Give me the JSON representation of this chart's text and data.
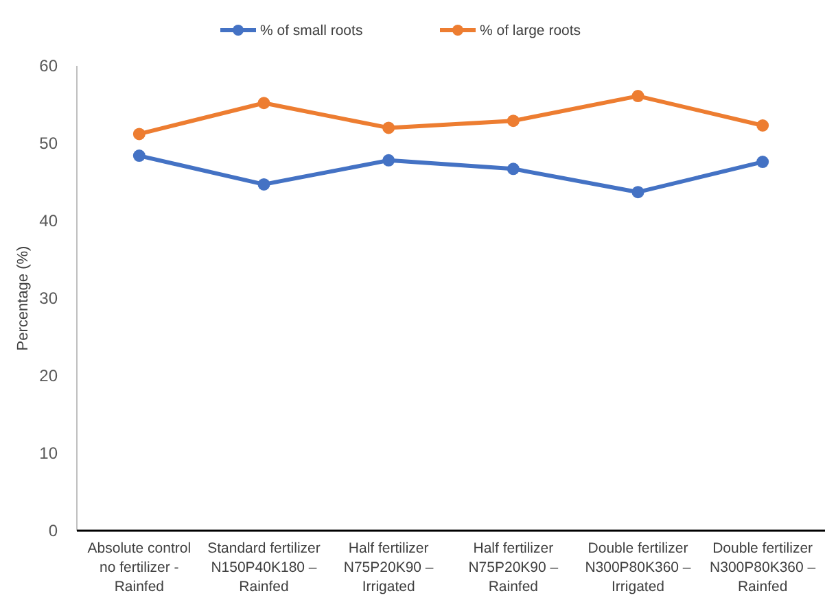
{
  "chart_data": {
    "type": "line",
    "ylabel": "Percentage (%)",
    "categories": [
      "Absolute control\nno fertilizer -\nRainfed",
      "Standard fertilizer\nN150P40K180 –\nRainfed",
      "Half fertilizer\nN75P20K90 –\nIrrigated",
      "Half fertilizer\nN75P20K90 –\nRainfed",
      "Double fertilizer\nN300P80K360 –\nIrrigated",
      "Double fertilizer\nN300P80K360 –\nRainfed"
    ],
    "series": [
      {
        "name": "% of small roots",
        "color": "#4472c4",
        "values": [
          48.4,
          44.7,
          47.8,
          46.7,
          43.7,
          47.6
        ]
      },
      {
        "name": "% of large roots",
        "color": "#ed7d31",
        "values": [
          51.2,
          55.2,
          52.0,
          52.9,
          56.1,
          52.3
        ]
      }
    ],
    "ylim": [
      0,
      60
    ],
    "yticks": [
      0,
      10,
      20,
      30,
      40,
      50,
      60
    ],
    "grid": false,
    "legend": "top",
    "marker": "circle",
    "line_style": "solid"
  }
}
